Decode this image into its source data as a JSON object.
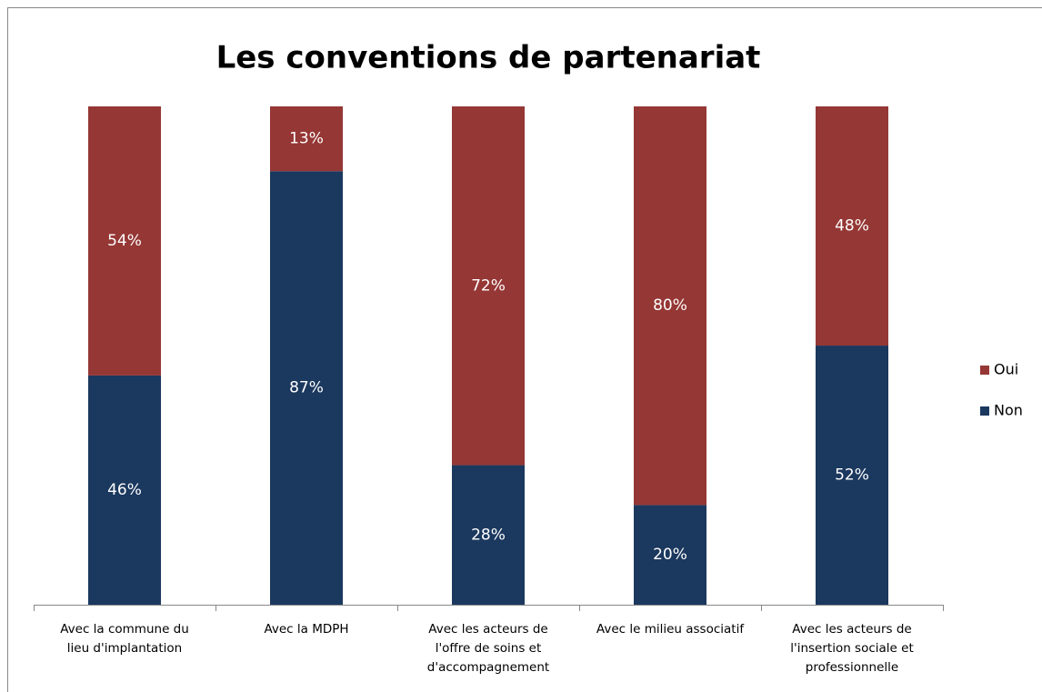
{
  "chart_data": {
    "type": "stacked_bar",
    "title": "Les conventions de partenariat",
    "categories": [
      "Avec la commune du\nlieu d'implantation",
      "Avec la MDPH",
      "Avec les acteurs de\nl'offre de soins et\nd'accompagnement",
      "Avec le milieu associatif",
      "Avec les acteurs de\nl'insertion sociale et\nprofessionnelle"
    ],
    "series": [
      {
        "name": "Non",
        "color": "#1b385e",
        "values": [
          46,
          87,
          28,
          20,
          52
        ],
        "value_labels": [
          "46%",
          "87%",
          "28%",
          "20%",
          "52%"
        ]
      },
      {
        "name": "Oui",
        "color": "#953735",
        "values": [
          54,
          13,
          72,
          80,
          48
        ],
        "value_labels": [
          "54%",
          "13%",
          "72%",
          "80%",
          "48%"
        ]
      }
    ],
    "legend": "right"
  }
}
